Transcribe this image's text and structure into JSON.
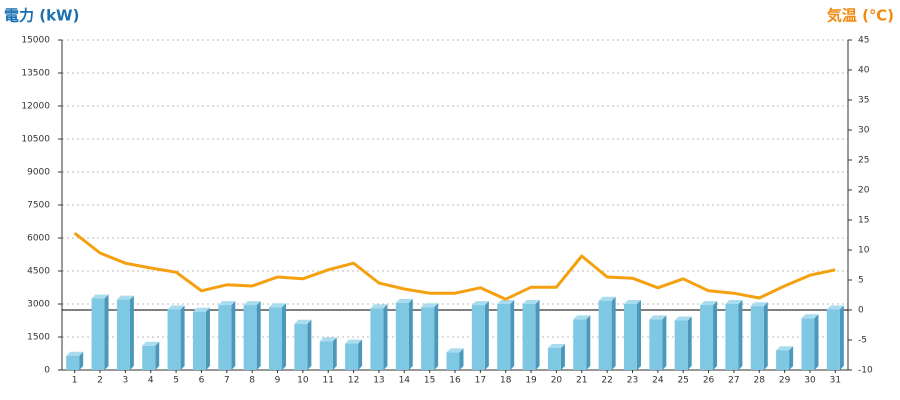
{
  "chart_data": {
    "type": "bar-line",
    "title": "電力 (kW)",
    "y2_title": "気温 (℃)",
    "categories": [
      "1",
      "2",
      "3",
      "4",
      "5",
      "6",
      "7",
      "8",
      "9",
      "10",
      "11",
      "12",
      "13",
      "14",
      "15",
      "16",
      "17",
      "18",
      "19",
      "20",
      "21",
      "22",
      "23",
      "24",
      "25",
      "26",
      "27",
      "28",
      "29",
      "30",
      "31"
    ],
    "series": [
      {
        "name": "電力",
        "type": "bar",
        "color": "#7ec8e3",
        "values": [
          650,
          3250,
          3200,
          1100,
          2750,
          2650,
          2950,
          2950,
          2850,
          2100,
          1300,
          1200,
          2800,
          3050,
          2850,
          800,
          2950,
          3000,
          3000,
          1000,
          2300,
          3150,
          3000,
          2300,
          2250,
          2950,
          3000,
          2900,
          900,
          2350,
          2750
        ]
      },
      {
        "name": "気温",
        "type": "line",
        "axis": "y2",
        "color": "#f5a00f",
        "values": [
          12.8,
          9.5,
          7.8,
          7,
          6.3,
          3.2,
          4.2,
          4,
          5.5,
          5.2,
          6.7,
          7.8,
          4.5,
          3.5,
          2.8,
          2.8,
          3.7,
          1.8,
          3.8,
          3.8,
          9,
          5.5,
          5.3,
          3.7,
          5.2,
          3.2,
          2.8,
          2,
          4,
          5.8,
          6.7
        ]
      }
    ],
    "ylim": [
      0,
      15000
    ],
    "yticks": [
      0,
      1500,
      3000,
      4500,
      6000,
      7500,
      9000,
      10500,
      12000,
      13500,
      15000
    ],
    "y2lim": [
      -10,
      45
    ],
    "y2ticks": [
      -10,
      -5,
      0,
      5,
      10,
      15,
      20,
      25,
      30,
      35,
      40,
      45
    ],
    "grid": true
  }
}
